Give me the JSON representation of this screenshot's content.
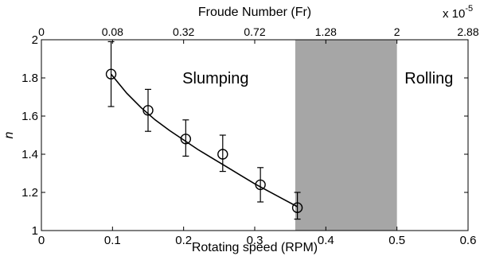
{
  "chart_data": {
    "type": "line",
    "xlabel": "Rotating speed (RPM)",
    "ylabel": "n",
    "top_axis_label": "Froude Number (Fr)",
    "top_axis_exponent": "x 10",
    "top_axis_exponent_power": "-5",
    "xlim": [
      0,
      0.6
    ],
    "ylim": [
      1,
      2
    ],
    "x_ticks": [
      "0",
      "0.1",
      "0.2",
      "0.3",
      "0.4",
      "0.5",
      "0.6"
    ],
    "x_tick_values": [
      0,
      0.1,
      0.2,
      0.3,
      0.4,
      0.5,
      0.6
    ],
    "y_ticks": [
      "1",
      "1.2",
      "1.4",
      "1.6",
      "1.8",
      "2"
    ],
    "y_tick_values": [
      1,
      1.2,
      1.4,
      1.6,
      1.8,
      2
    ],
    "top_ticks": [
      "0",
      "0.08",
      "0.32",
      "0.72",
      "1.28",
      "2",
      "2.88"
    ],
    "top_tick_positions": [
      0,
      0.1,
      0.2,
      0.3,
      0.4,
      0.5,
      0.6
    ],
    "points": {
      "x": [
        0.098,
        0.15,
        0.203,
        0.255,
        0.308,
        0.36
      ],
      "y": [
        1.82,
        1.63,
        1.48,
        1.4,
        1.24,
        1.12
      ],
      "err_low": [
        1.65,
        1.52,
        1.39,
        1.31,
        1.15,
        1.06
      ],
      "err_high": [
        1.99,
        1.74,
        1.58,
        1.5,
        1.33,
        1.2
      ]
    },
    "fit_curve": {
      "x": [
        0.098,
        0.12,
        0.14,
        0.16,
        0.18,
        0.2,
        0.22,
        0.24,
        0.26,
        0.28,
        0.3,
        0.32,
        0.34,
        0.36
      ],
      "y": [
        1.82,
        1.72,
        1.645,
        1.58,
        1.525,
        1.475,
        1.425,
        1.38,
        1.335,
        1.29,
        1.245,
        1.205,
        1.165,
        1.125
      ]
    },
    "shaded_region": {
      "x_start": 0.357,
      "x_end": 0.5,
      "color": "#a6a6a6"
    },
    "annotations": [
      {
        "text": "Slumping",
        "x": 0.245,
        "y": 1.8
      },
      {
        "text": "Rolling",
        "x": 0.545,
        "y": 1.8
      }
    ],
    "grid": false
  }
}
